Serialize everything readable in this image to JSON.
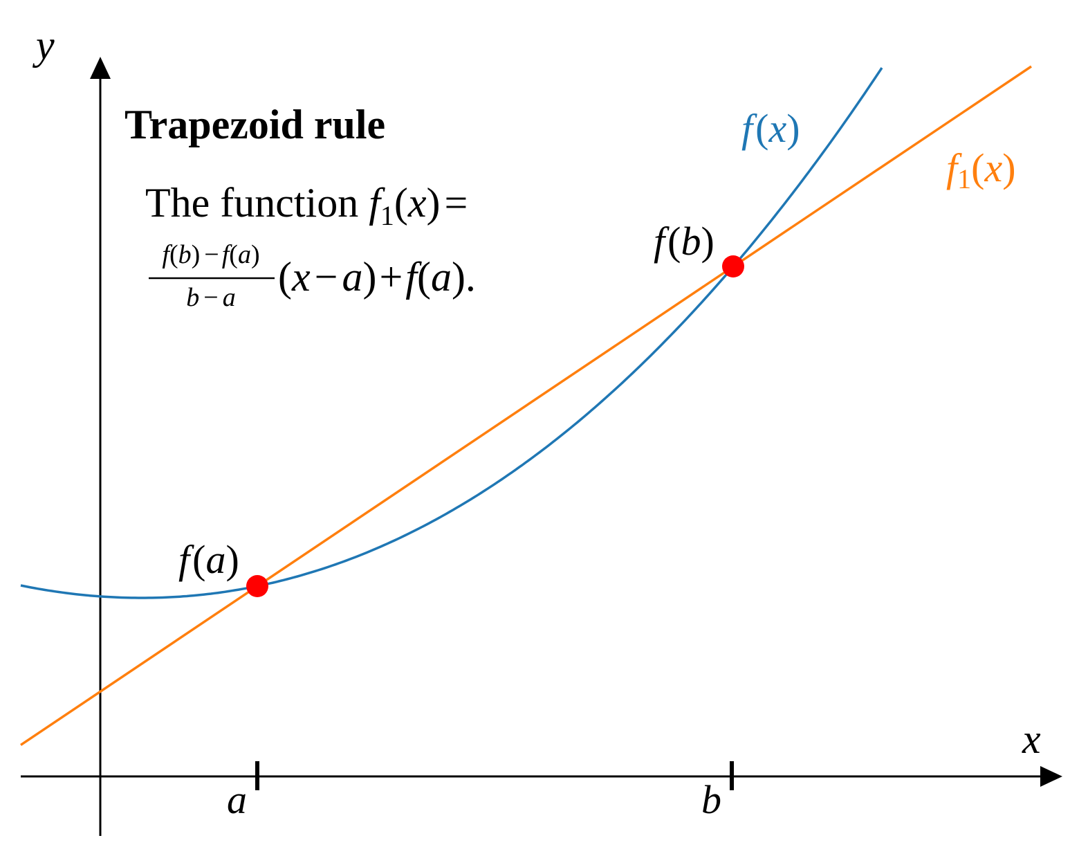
{
  "axes": {
    "x_label": "x",
    "y_label": "y",
    "ticks": [
      "a",
      "b"
    ]
  },
  "title": "Trapezoid rule",
  "description": {
    "lead": "The function",
    "lhs": {
      "f": "f",
      "sub": "1",
      "open": "(",
      "x": "x",
      "close": ")",
      "eq": "="
    },
    "fraction": {
      "numerator": {
        "f1": "f",
        "p1": "(",
        "b": "b",
        "p2": ")",
        "minus": "−",
        "f2": "f",
        "p3": "(",
        "a": "a",
        "p4": ")"
      },
      "denominator": {
        "b": "b",
        "minus": "−",
        "a": "a"
      }
    },
    "rest": {
      "open": "(",
      "x": "x",
      "minus": "−",
      "a": "a",
      "close": ")",
      "plus": "+",
      "f": "f",
      "open2": "(",
      "a2": "a",
      "close2": ").",
      "period": ""
    }
  },
  "curve_labels": {
    "f": {
      "f": "f",
      "open": "(",
      "x": "x",
      "close": ")"
    },
    "f1": {
      "f": "f",
      "sub": "1",
      "open": "(",
      "x": "x",
      "close": ")"
    }
  },
  "point_labels": {
    "fa": {
      "f": "f",
      "open": "(",
      "arg": "a",
      "close": ")"
    },
    "fb": {
      "f": "f",
      "open": "(",
      "arg": "b",
      "close": ")"
    }
  }
}
